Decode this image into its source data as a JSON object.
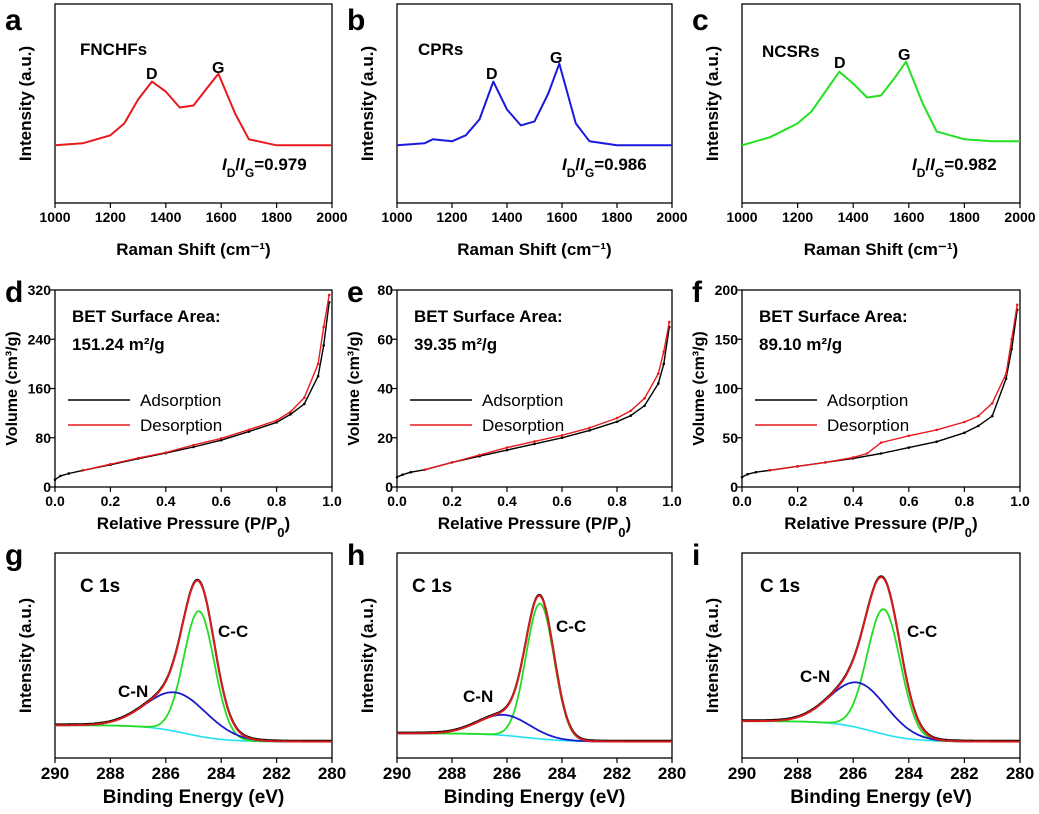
{
  "colors": {
    "red": "#e8191d",
    "blue": "#1a1adf",
    "green": "#22e022",
    "black": "#000000",
    "cyan": "#22e0f0",
    "xps_red": "#d81c1c",
    "xps_green": "#22dd22",
    "xps_blue": "#1a1acc"
  },
  "chart_data": [
    {
      "panel": "a",
      "type": "line",
      "title": "FNCHFs",
      "xlabel": "Raman Shift (cm⁻¹)",
      "ylabel": "Intensity (a.u.)",
      "xlim": [
        1000,
        2000
      ],
      "ylim": [
        0,
        1
      ],
      "xticks": [
        "1000",
        "1200",
        "1400",
        "1600",
        "1800",
        "2000"
      ],
      "yticks": [],
      "peaks": [
        {
          "label": "D",
          "x": 1350
        },
        {
          "label": "G",
          "x": 1590
        }
      ],
      "ratio_label": "=0.979",
      "ratio_prefix": "I",
      "sub1": "D",
      "sub2": "G",
      "series": [
        {
          "name": "FNCHFs",
          "color": "red",
          "x": [
            1000,
            1100,
            1200,
            1250,
            1300,
            1350,
            1400,
            1450,
            1500,
            1550,
            1590,
            1650,
            1700,
            1800,
            1900,
            2000
          ],
          "y": [
            0.29,
            0.3,
            0.34,
            0.4,
            0.52,
            0.61,
            0.56,
            0.48,
            0.49,
            0.58,
            0.65,
            0.45,
            0.32,
            0.29,
            0.29,
            0.29
          ]
        }
      ]
    },
    {
      "panel": "b",
      "type": "line",
      "title": "CPRs",
      "xlabel": "Raman Shift (cm⁻¹)",
      "ylabel": "Intensity (a.u.)",
      "xlim": [
        1000,
        2000
      ],
      "ylim": [
        0,
        1
      ],
      "xticks": [
        "1000",
        "1200",
        "1400",
        "1600",
        "1800",
        "2000"
      ],
      "yticks": [],
      "peaks": [
        {
          "label": "D",
          "x": 1350
        },
        {
          "label": "G",
          "x": 1590
        }
      ],
      "ratio_label": "=0.986",
      "ratio_prefix": "I",
      "sub1": "D",
      "sub2": "G",
      "series": [
        {
          "name": "CPRs",
          "color": "blue",
          "x": [
            1000,
            1100,
            1130,
            1200,
            1250,
            1300,
            1350,
            1400,
            1450,
            1500,
            1550,
            1590,
            1650,
            1700,
            1800,
            1900,
            2000
          ],
          "y": [
            0.29,
            0.3,
            0.32,
            0.31,
            0.34,
            0.42,
            0.61,
            0.47,
            0.39,
            0.41,
            0.55,
            0.7,
            0.4,
            0.31,
            0.29,
            0.29,
            0.29
          ]
        }
      ]
    },
    {
      "panel": "c",
      "type": "line",
      "title": "NCSRs",
      "xlabel": "Raman Shift (cm⁻¹)",
      "ylabel": "Intensity (a.u.)",
      "xlim": [
        1000,
        2000
      ],
      "ylim": [
        0,
        1
      ],
      "xticks": [
        "1000",
        "1200",
        "1400",
        "1600",
        "1800",
        "2000"
      ],
      "yticks": [],
      "peaks": [
        {
          "label": "D",
          "x": 1350
        },
        {
          "label": "G",
          "x": 1590
        }
      ],
      "ratio_label": "=0.982",
      "ratio_prefix": "I",
      "sub1": "D",
      "sub2": "G",
      "series": [
        {
          "name": "NCSRs",
          "color": "green",
          "x": [
            1000,
            1100,
            1200,
            1250,
            1300,
            1350,
            1400,
            1450,
            1500,
            1550,
            1590,
            1650,
            1700,
            1800,
            1900,
            2000
          ],
          "y": [
            0.29,
            0.33,
            0.4,
            0.46,
            0.56,
            0.66,
            0.6,
            0.53,
            0.54,
            0.63,
            0.71,
            0.5,
            0.36,
            0.32,
            0.31,
            0.31
          ]
        }
      ]
    },
    {
      "panel": "d",
      "type": "line",
      "annotation": "BET Surface Area:",
      "value": "151.24 m²/g",
      "xlabel": "Relative Pressure (P/P",
      "xlabel_sub": "0",
      "xlabel_end": ")",
      "ylabel": "Volume (cm³/g)",
      "xlim": [
        0,
        1
      ],
      "ylim": [
        0,
        320
      ],
      "xticks": [
        "0.0",
        "0.2",
        "0.4",
        "0.6",
        "0.8",
        "1.0"
      ],
      "yticks": [
        "0",
        "80",
        "160",
        "240",
        "320"
      ],
      "legend": "left",
      "series": [
        {
          "name": "Adsorption",
          "color": "black",
          "x": [
            0,
            0.02,
            0.05,
            0.1,
            0.2,
            0.3,
            0.4,
            0.5,
            0.6,
            0.7,
            0.8,
            0.85,
            0.9,
            0.95,
            0.97,
            0.99
          ],
          "y": [
            12,
            18,
            22,
            27,
            36,
            46,
            55,
            65,
            76,
            90,
            105,
            118,
            135,
            180,
            230,
            300
          ]
        },
        {
          "name": "Desorption",
          "color": "red",
          "x": [
            0.1,
            0.2,
            0.3,
            0.4,
            0.5,
            0.6,
            0.7,
            0.8,
            0.85,
            0.9,
            0.95,
            0.97,
            0.99
          ],
          "y": [
            27,
            37,
            47,
            56,
            68,
            79,
            93,
            108,
            122,
            145,
            200,
            260,
            312
          ]
        }
      ]
    },
    {
      "panel": "e",
      "type": "line",
      "annotation": "BET Surface Area:",
      "value": "39.35 m²/g",
      "xlabel": "Relative Pressure (P/P",
      "xlabel_sub": "0",
      "xlabel_end": ")",
      "ylabel": "Volume (cm³/g)",
      "xlim": [
        0,
        1
      ],
      "ylim": [
        0,
        80
      ],
      "xticks": [
        "0.0",
        "0.2",
        "0.4",
        "0.6",
        "0.8",
        "1.0"
      ],
      "yticks": [
        "0",
        "20",
        "40",
        "60",
        "80"
      ],
      "legend": "left",
      "series": [
        {
          "name": "Adsorption",
          "color": "black",
          "x": [
            0,
            0.02,
            0.05,
            0.1,
            0.2,
            0.3,
            0.4,
            0.5,
            0.6,
            0.7,
            0.8,
            0.85,
            0.9,
            0.95,
            0.97,
            0.99
          ],
          "y": [
            4,
            5,
            6,
            7,
            10,
            12.5,
            15,
            17.5,
            20,
            23,
            26.5,
            29,
            33,
            42,
            50,
            65
          ]
        },
        {
          "name": "Desorption",
          "color": "red",
          "x": [
            0.1,
            0.2,
            0.3,
            0.4,
            0.5,
            0.6,
            0.7,
            0.8,
            0.85,
            0.9,
            0.95,
            0.97,
            0.99
          ],
          "y": [
            7,
            10,
            13,
            16,
            18.5,
            21,
            24,
            28,
            31,
            36,
            46,
            55,
            67
          ]
        }
      ]
    },
    {
      "panel": "f",
      "type": "line",
      "annotation": "BET Surface Area:",
      "value": "89.10 m²/g",
      "xlabel": "Relative Pressure (P/P",
      "xlabel_sub": "0",
      "xlabel_end": ")",
      "ylabel": "Volume (cm³/g)",
      "xlim": [
        0,
        1
      ],
      "ylim": [
        0,
        200
      ],
      "xticks": [
        "0.0",
        "0.2",
        "0.4",
        "0.6",
        "0.8",
        "1.0"
      ],
      "yticks": [
        "0",
        "50",
        "100",
        "150",
        "200"
      ],
      "legend": "left",
      "series": [
        {
          "name": "Adsorption",
          "color": "black",
          "x": [
            0,
            0.02,
            0.05,
            0.1,
            0.2,
            0.3,
            0.4,
            0.5,
            0.6,
            0.7,
            0.8,
            0.85,
            0.9,
            0.95,
            0.97,
            0.99
          ],
          "y": [
            10,
            13,
            15,
            17,
            21,
            25,
            29,
            34,
            40,
            46,
            55,
            62,
            72,
            110,
            140,
            180
          ]
        },
        {
          "name": "Desorption",
          "color": "red",
          "x": [
            0.1,
            0.2,
            0.3,
            0.4,
            0.45,
            0.5,
            0.6,
            0.7,
            0.8,
            0.85,
            0.9,
            0.95,
            0.97,
            0.99
          ],
          "y": [
            17,
            21,
            25,
            30,
            34,
            45,
            52,
            58,
            66,
            72,
            85,
            115,
            150,
            185
          ]
        }
      ]
    },
    {
      "panel": "g",
      "type": "line",
      "title": "C 1s",
      "xlabel": "Binding Energy (eV)",
      "ylabel": "Intensity (a.u.)",
      "xlim": [
        290,
        280
      ],
      "ylim": [
        0,
        1
      ],
      "xticks": [
        "290",
        "288",
        "286",
        "284",
        "282",
        "280"
      ],
      "yticks": [],
      "background": {
        "high": 0.16,
        "low": 0.08,
        "center": 285.3
      },
      "components": [
        {
          "name": "C-C",
          "center": 284.8,
          "height": 0.61,
          "fwhm": 1.3,
          "color": "xps_green"
        },
        {
          "name": "C-N",
          "center": 285.6,
          "height": 0.19,
          "fwhm": 2.6,
          "color": "xps_blue"
        }
      ]
    },
    {
      "panel": "h",
      "type": "line",
      "title": "C 1s",
      "xlabel": "Binding Energy (eV)",
      "ylabel": "Intensity (a.u.)",
      "xlim": [
        290,
        280
      ],
      "ylim": [
        0,
        1
      ],
      "xticks": [
        "290",
        "288",
        "286",
        "284",
        "282",
        "280"
      ],
      "yticks": [],
      "background": {
        "high": 0.12,
        "low": 0.08,
        "center": 285.3
      },
      "components": [
        {
          "name": "C-C",
          "center": 284.8,
          "height": 0.66,
          "fwhm": 1.2,
          "color": "xps_green"
        },
        {
          "name": "C-N",
          "center": 286.1,
          "height": 0.1,
          "fwhm": 2.2,
          "color": "xps_blue"
        }
      ]
    },
    {
      "panel": "i",
      "type": "line",
      "title": "C 1s",
      "xlabel": "Binding Energy (eV)",
      "ylabel": "Intensity (a.u.)",
      "xlim": [
        290,
        280
      ],
      "ylim": [
        0,
        1
      ],
      "xticks": [
        "290",
        "288",
        "286",
        "284",
        "282",
        "280"
      ],
      "yticks": [],
      "background": {
        "high": 0.18,
        "low": 0.08,
        "center": 285.3
      },
      "components": [
        {
          "name": "C-C",
          "center": 284.9,
          "height": 0.61,
          "fwhm": 1.4,
          "color": "xps_green"
        },
        {
          "name": "C-N",
          "center": 285.8,
          "height": 0.22,
          "fwhm": 2.4,
          "color": "xps_blue"
        }
      ]
    }
  ]
}
